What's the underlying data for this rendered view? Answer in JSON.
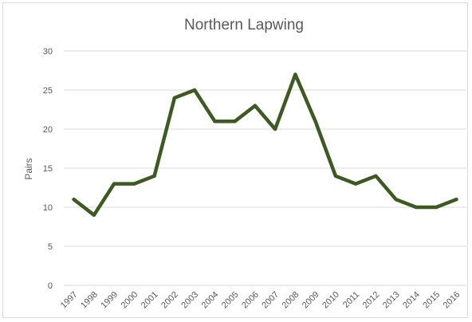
{
  "chart_data": {
    "type": "line",
    "title": "Northern Lapwing",
    "xlabel": "",
    "ylabel": "Pairs",
    "categories": [
      "1997",
      "1998",
      "1999",
      "2000",
      "2001",
      "2002",
      "2003",
      "2004",
      "2005",
      "2006",
      "2007",
      "2008",
      "2009",
      "2010",
      "2011",
      "2012",
      "2013",
      "2014",
      "2015",
      "2016"
    ],
    "series": [
      {
        "values": [
          11,
          9,
          13,
          13,
          14,
          24,
          25,
          21,
          21,
          23,
          20,
          27,
          21,
          14,
          13,
          14,
          11,
          10,
          10,
          11
        ]
      }
    ],
    "ylim": [
      0,
      30
    ],
    "yticks": [
      0,
      5,
      10,
      15,
      20,
      25,
      30
    ],
    "grid": true,
    "legend": "none",
    "colors": {
      "line": "#3d5a23",
      "grid": "#d9d9d9",
      "text": "#595959"
    }
  }
}
